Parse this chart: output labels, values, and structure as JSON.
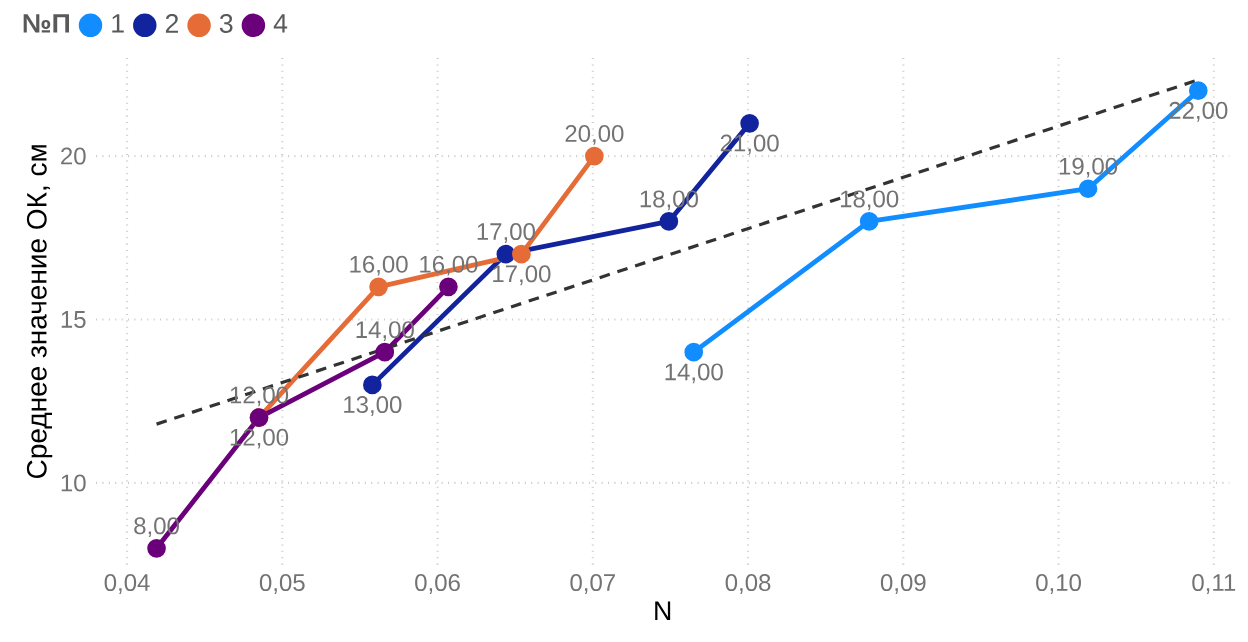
{
  "chart_data": {
    "type": "line",
    "xlabel": "N",
    "ylabel": "Среднее значение ОК, см",
    "legend_title": "№П",
    "xlim": [
      0.038,
      0.111
    ],
    "ylim": [
      7.5,
      23
    ],
    "xticks": [
      {
        "value": 0.04,
        "label": "0,04"
      },
      {
        "value": 0.05,
        "label": "0,05"
      },
      {
        "value": 0.06,
        "label": "0,06"
      },
      {
        "value": 0.07,
        "label": "0,07"
      },
      {
        "value": 0.08,
        "label": "0,08"
      },
      {
        "value": 0.09,
        "label": "0,09"
      },
      {
        "value": 0.1,
        "label": "0,10"
      },
      {
        "value": 0.11,
        "label": "0,11"
      }
    ],
    "yticks": [
      10,
      15,
      20
    ],
    "grid": true,
    "legend": "top left",
    "marker": "circle",
    "series": [
      {
        "name": "1",
        "color": "#118dff",
        "x": [
          0.0765,
          0.0878,
          0.1019,
          0.109
        ],
        "values": [
          14,
          18,
          19,
          22
        ],
        "value_labels": [
          "14,00",
          "18,00",
          "19,00",
          "22,00"
        ]
      },
      {
        "name": "2",
        "color": "#12239e",
        "x": [
          0.0558,
          0.0644,
          0.0749,
          0.0801
        ],
        "values": [
          13,
          17,
          18,
          21
        ],
        "value_labels": [
          "13,00",
          "17,00",
          "18,00",
          "21,00"
        ]
      },
      {
        "name": "3",
        "color": "#e66c37",
        "x": [
          0.0485,
          0.0562,
          0.0654,
          0.0701
        ],
        "values": [
          12,
          16,
          17,
          20
        ],
        "value_labels": [
          "12,00",
          "16,00",
          "17,00",
          "20,00"
        ]
      },
      {
        "name": "4",
        "color": "#6b007b",
        "x": [
          0.0419,
          0.0485,
          0.0566,
          0.0607
        ],
        "values": [
          8,
          12,
          14,
          16
        ],
        "value_labels": [
          "8,00",
          "12,00",
          "14,00",
          "16,00"
        ]
      },
      {
        "type": "line",
        "color": "#333333",
        "line_style": "dashed",
        "marker": "none",
        "x": [
          0.0419,
          0.1088
        ],
        "values": [
          11.8,
          22.3
        ]
      }
    ]
  }
}
